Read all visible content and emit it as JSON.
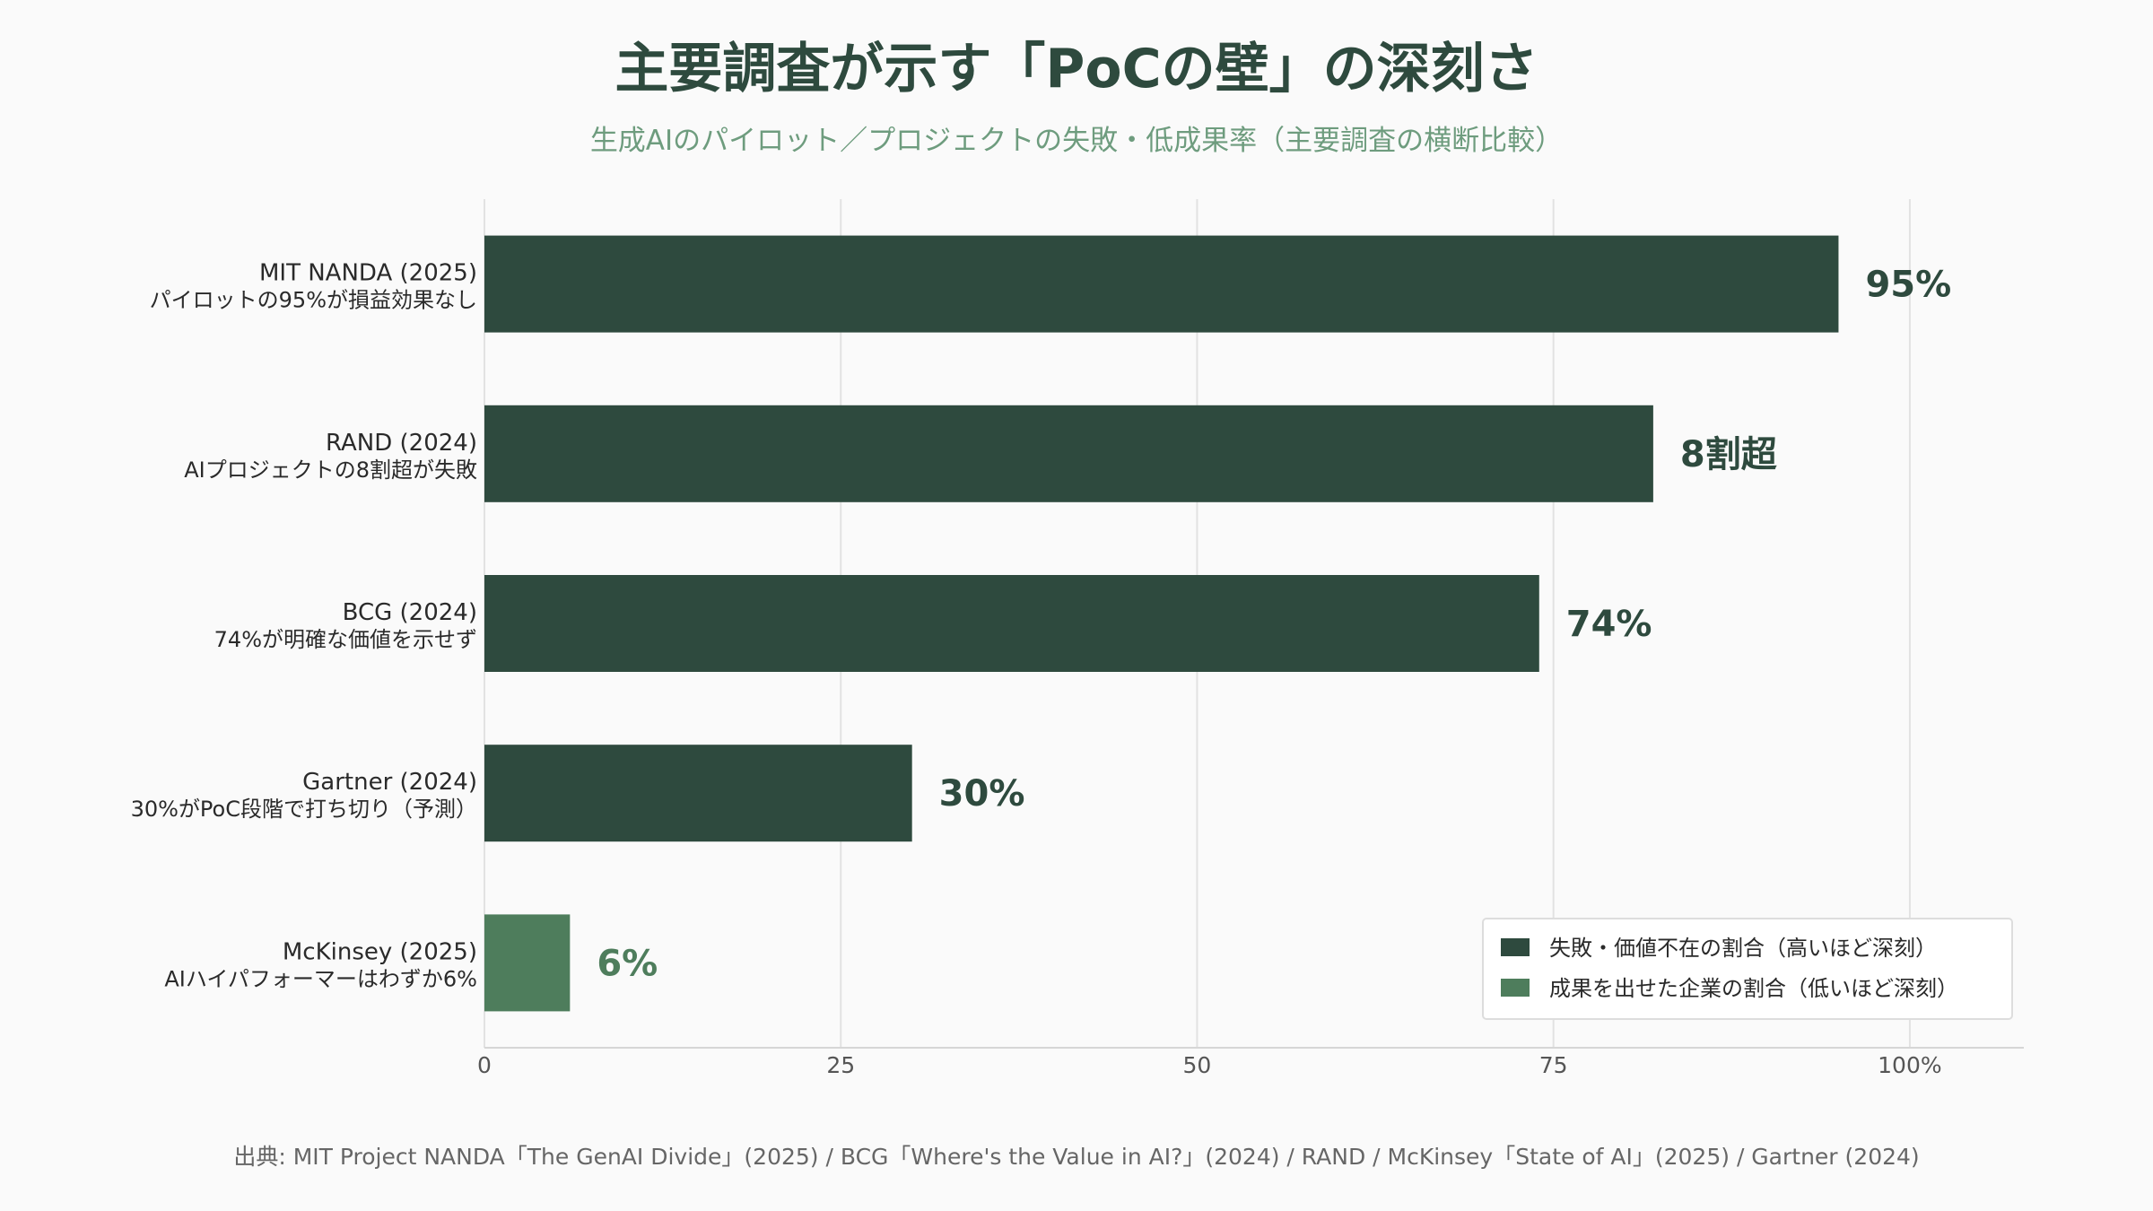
{
  "title": "主要調査が示す「PoCの壁」の深刻さ",
  "subtitle": "生成AIのパイロット／プロジェクトの失敗・低成果率（主要調査の横断比較）",
  "source": "出典: MIT Project NANDA「The GenAI Divide」(2025) / BCG「Where's the Value in AI?」(2024) / RAND / McKinsey「State of AI」(2025) / Gartner (2024)",
  "colors": {
    "failure": "#2e4a3e",
    "success": "#4e7d5c",
    "grid": "#e2e2e2",
    "axis_text": "#555555",
    "label_text": "#2a2a2a"
  },
  "chart_data": {
    "type": "bar",
    "orientation": "horizontal",
    "xlim": [
      0,
      108
    ],
    "xticks": [
      0,
      25,
      50,
      75,
      100
    ],
    "xtick_labels": [
      "0",
      "25",
      "50",
      "75",
      "100%"
    ],
    "grid": true,
    "legend_position": "bottom-right",
    "legend": [
      {
        "key": "failure",
        "label": "失敗・価値不在の割合（高いほど深刻）"
      },
      {
        "key": "success",
        "label": "成果を出せた企業の割合（低いほど深刻）"
      }
    ],
    "bars": [
      {
        "line1": "MIT NANDA (2025)",
        "line2": "パイロットの95%が損益効果なし",
        "value": 95,
        "value_label": "95%",
        "kind": "failure"
      },
      {
        "line1": "RAND (2024)",
        "line2": "AIプロジェクトの8割超が失敗",
        "value": 82,
        "value_label": "8割超",
        "kind": "failure"
      },
      {
        "line1": "BCG (2024)",
        "line2": "74%が明確な価値を示せず",
        "value": 74,
        "value_label": "74%",
        "kind": "failure"
      },
      {
        "line1": "Gartner (2024)",
        "line2": "30%がPoC段階で打ち切り（予測）",
        "value": 30,
        "value_label": "30%",
        "kind": "failure"
      },
      {
        "line1": "McKinsey (2025)",
        "line2": "AIハイパフォーマーはわずか6%",
        "value": 6,
        "value_label": "6%",
        "kind": "success"
      }
    ]
  }
}
